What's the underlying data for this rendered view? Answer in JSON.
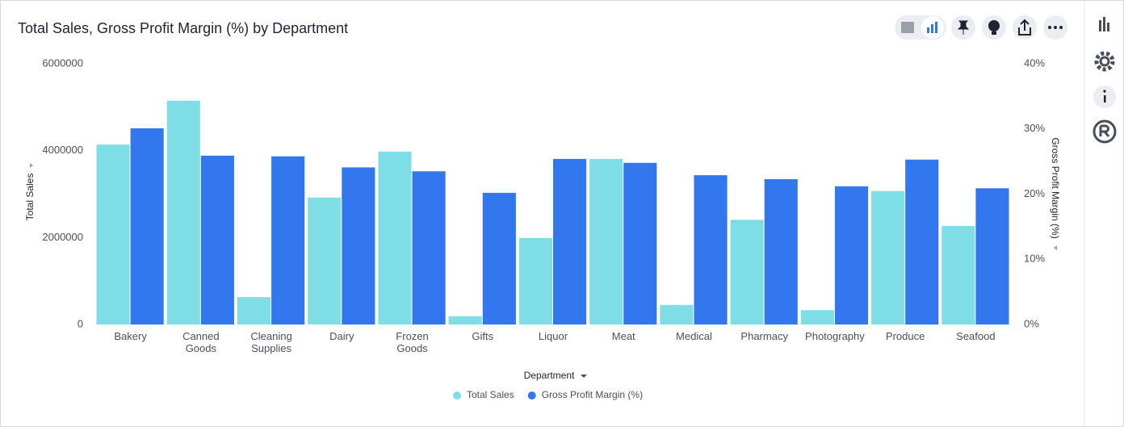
{
  "chart_data": {
    "type": "bar",
    "title": "Total Sales, Gross Profit Margin (%) by Department",
    "x_label": "Department",
    "y_label": "Total Sales",
    "y2_label": "Gross Profit Margin (%)",
    "categories": [
      "Bakery",
      "Canned Goods",
      "Cleaning Supplies",
      "Dairy",
      "Frozen Goods",
      "Gifts",
      "Liquor",
      "Meat",
      "Medical",
      "Pharmacy",
      "Photography",
      "Produce",
      "Seafood"
    ],
    "series": [
      {
        "name": "Total Sales",
        "color": "#7fdde6",
        "values": [
          4140000,
          5150000,
          630000,
          2920000,
          3980000,
          190000,
          1990000,
          3810000,
          450000,
          2410000,
          330000,
          3070000,
          2270000
        ]
      },
      {
        "name": "Gross Profit Margin (%)",
        "color": "#3277ed",
        "axis": "y2",
        "values": [
          30.1,
          25.9,
          25.8,
          24.1,
          23.5,
          20.2,
          25.4,
          24.8,
          22.9,
          22.3,
          21.2,
          25.3,
          20.9
        ]
      }
    ],
    "ylim": [
      0,
      6000000
    ],
    "yticks": [
      0,
      2000000,
      4000000,
      6000000
    ],
    "y2lim": [
      0,
      40
    ],
    "y2ticks": [
      {
        "value": 0,
        "label": "0%"
      },
      {
        "value": 10,
        "label": "10%"
      },
      {
        "value": 20,
        "label": "20%"
      },
      {
        "value": 30,
        "label": "30%"
      },
      {
        "value": 40,
        "label": "40%"
      }
    ],
    "legend": "bottom"
  }
}
